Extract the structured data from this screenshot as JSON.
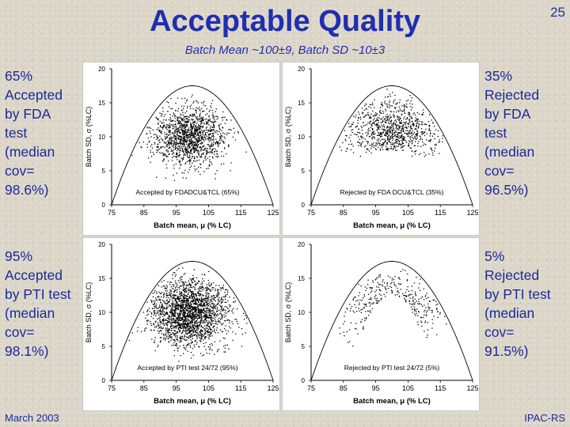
{
  "title": "Acceptable Quality",
  "page_number": "25",
  "subtitle": "Batch Mean ~100±9, Batch SD ~10±3",
  "side_labels": {
    "top_left": "65%\nAccepted\nby FDA\ntest\n(median\ncov=\n98.6%)",
    "top_right": "35%\nRejected\nby FDA\ntest\n(median\ncov=\n96.5%)",
    "bottom_left": "95%\nAccepted\nby PTI test\n(median\ncov=\n98.1%)",
    "bottom_right": "5%\nRejected\nby PTI test\n(median\ncov=\n91.5%)"
  },
  "footer": {
    "left": "March 2003",
    "right": "IPAC-RS"
  },
  "colors": {
    "text_blue": "#1f2fb0",
    "points": "#000000",
    "boundary": "#000000"
  },
  "chart_data": [
    {
      "type": "scatter",
      "annotation": "Accepted by FDADCU&TCL (65%)",
      "xlabel": "Batch mean, μ (% LC)",
      "ylabel": "Batch SD, σ (%LC)",
      "xlim": [
        75,
        125
      ],
      "ylim": [
        0,
        20
      ],
      "xticks": [
        "75",
        "85",
        "95",
        "105",
        "115",
        "125"
      ],
      "yticks": [
        "0",
        "5",
        "10",
        "15",
        "20"
      ],
      "boundary": "parabola",
      "boundary_vertex": [
        100,
        17.5
      ],
      "boundary_roots": [
        75,
        125
      ],
      "cloud": {
        "center": [
          99,
          10
        ],
        "sd": [
          5.5,
          2.2
        ],
        "count": 1400,
        "shape": "accepted"
      },
      "grid": false
    },
    {
      "type": "scatter",
      "annotation": "Rejected by FDA DCU&TCL (35%)",
      "xlabel": "Batch mean, μ (% LC)",
      "ylabel": "Batch SD, σ (%LC)",
      "xlim": [
        75,
        125
      ],
      "ylim": [
        0,
        20
      ],
      "xticks": [
        "75",
        "85",
        "95",
        "105",
        "115",
        "125"
      ],
      "yticks": [
        "0",
        "5",
        "10",
        "15",
        "20"
      ],
      "boundary": "parabola",
      "boundary_vertex": [
        100,
        17.5
      ],
      "boundary_roots": [
        75,
        125
      ],
      "cloud": {
        "center": [
          100,
          11
        ],
        "sd": [
          7,
          2.2
        ],
        "count": 900,
        "shape": "fda-rejected"
      },
      "grid": false
    },
    {
      "type": "scatter",
      "annotation": "Accepted by PTI test 24/72 (95%)",
      "xlabel": "Batch mean, μ (% LC)",
      "ylabel": "Batch SD, σ (%LC)",
      "xlim": [
        75,
        125
      ],
      "ylim": [
        0,
        20
      ],
      "xticks": [
        "75",
        "85",
        "95",
        "105",
        "115",
        "125"
      ],
      "yticks": [
        "0",
        "5",
        "10",
        "15",
        "20"
      ],
      "boundary": "parabola",
      "boundary_vertex": [
        100,
        17.5
      ],
      "boundary_roots": [
        75,
        125
      ],
      "cloud": {
        "center": [
          99,
          10
        ],
        "sd": [
          6,
          2.4
        ],
        "count": 2200,
        "shape": "accepted"
      },
      "grid": false
    },
    {
      "type": "scatter",
      "annotation": "Rejected by PTI test 24/72 (5%)",
      "xlabel": "Batch mean, μ (% LC)",
      "ylabel": "Batch SD, σ (%LC)",
      "xlim": [
        75,
        125
      ],
      "ylim": [
        0,
        20
      ],
      "xticks": [
        "75",
        "85",
        "95",
        "105",
        "115",
        "125"
      ],
      "yticks": [
        "0",
        "5",
        "10",
        "15",
        "20"
      ],
      "boundary": "parabola",
      "boundary_vertex": [
        100,
        17.5
      ],
      "boundary_roots": [
        75,
        125
      ],
      "cloud": {
        "center": [
          100,
          11
        ],
        "sd": [
          8,
          2.5
        ],
        "count": 320,
        "shape": "pti-rejected"
      },
      "grid": false
    }
  ]
}
